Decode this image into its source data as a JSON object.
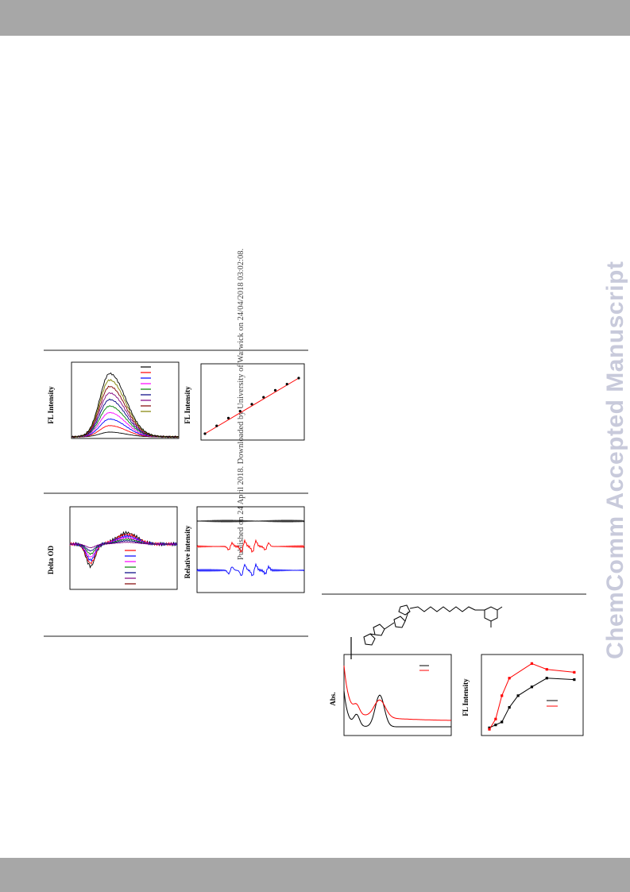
{
  "side_note": "Published on 24 April 2018. Downloaded by University of Warwick on 24/04/2018 03:02:08.",
  "watermark": "ChemComm Accepted Manuscript",
  "figures": {
    "fl_spectra": {
      "ylabel": "FL Intensity"
    },
    "fl_linear": {
      "ylabel": "FL Intensity"
    },
    "transient": {
      "ylabel": "Delta OD"
    },
    "epr": {
      "ylabel": "Relative intensity"
    },
    "absorption": {
      "ylabel": "Abs."
    },
    "fl_vs_conc": {
      "ylabel": "FL Intensity"
    }
  },
  "colors": {
    "band": "#a7a7a7",
    "rule": "#8d8d8d",
    "watermark": "#c8cadb",
    "series": [
      "#000000",
      "#ff0000",
      "#0000ff",
      "#ff00ff",
      "#008000",
      "#000080",
      "#800080",
      "#800000",
      "#808000"
    ]
  },
  "chart_data": [
    {
      "type": "line",
      "panel": "fl_spectra",
      "ylabel": "FL Intensity",
      "series_count": 10,
      "legend": "top-right"
    },
    {
      "type": "scatter",
      "panel": "fl_linear",
      "ylabel": "FL Intensity",
      "x": [
        1,
        2,
        3,
        4,
        5,
        6,
        7,
        8,
        9
      ],
      "y": [
        1.0,
        1.9,
        2.8,
        3.6,
        4.4,
        5.2,
        6.0,
        6.7,
        7.4
      ],
      "fit": "linear"
    },
    {
      "type": "line",
      "panel": "transient",
      "ylabel": "Delta OD",
      "series_count": 7,
      "legend": "center"
    },
    {
      "type": "line",
      "panel": "epr",
      "ylabel": "Relative intensity",
      "series_count": 3
    },
    {
      "type": "line",
      "panel": "absorption",
      "ylabel": "Abs.",
      "series_count": 2,
      "legend": "top-right"
    },
    {
      "type": "line",
      "panel": "fl_vs_conc",
      "ylabel": "FL Intensity",
      "series": [
        {
          "values": [
            0.2,
            0.4,
            0.6,
            1.6,
            2.4,
            3.0,
            3.6,
            3.5
          ]
        },
        {
          "values": [
            0.1,
            0.8,
            2.4,
            3.6,
            4.6,
            4.2,
            4.0
          ]
        }
      ],
      "legend": "center-right"
    }
  ]
}
